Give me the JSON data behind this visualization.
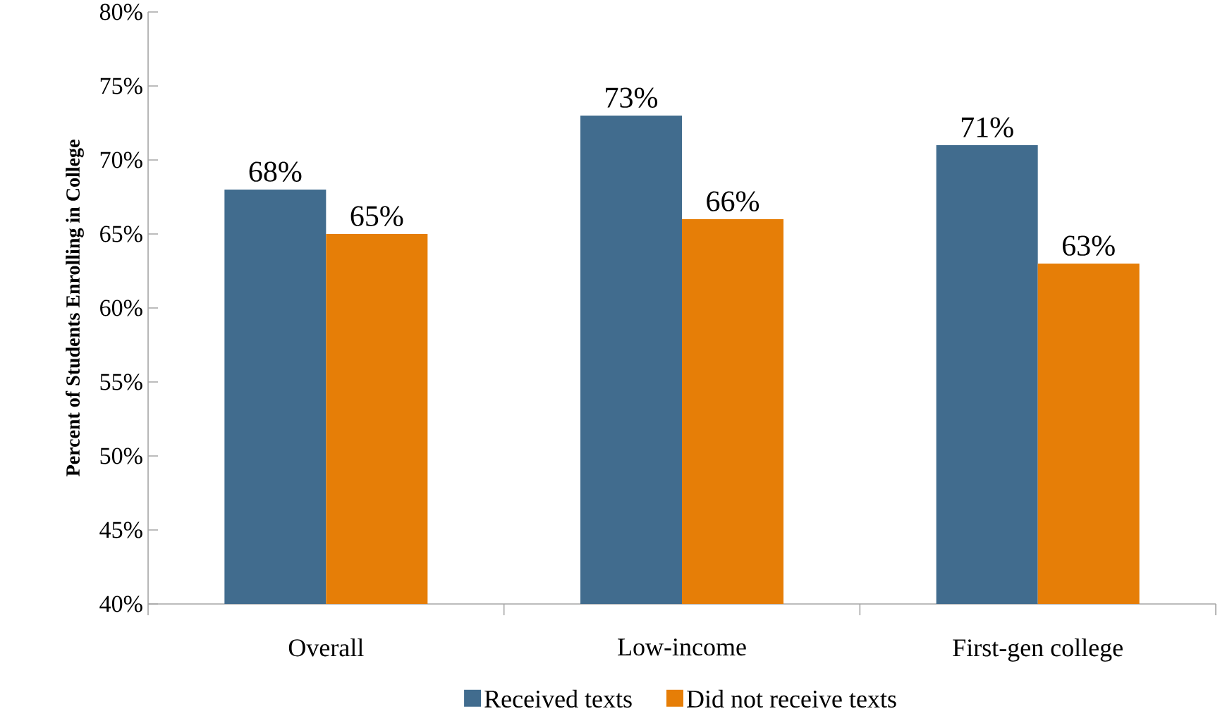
{
  "chart_data": {
    "type": "bar",
    "ylabel": "Percent of  Students Enrolling in College",
    "categories": [
      "Overall",
      "Low-income",
      "First-gen college"
    ],
    "series": [
      {
        "name": "Received texts",
        "color": "#416c8e",
        "values": [
          68,
          73,
          71
        ],
        "value_labels": [
          "68%",
          "73%",
          "71%"
        ]
      },
      {
        "name": "Did not receive texts",
        "color": "#e67e07",
        "values": [
          65,
          66,
          63
        ],
        "value_labels": [
          "65%",
          "66%",
          "63%"
        ]
      }
    ],
    "ylim": [
      40,
      80
    ],
    "yticks": [
      {
        "value": 40,
        "label": "40%"
      },
      {
        "value": 45,
        "label": "45%"
      },
      {
        "value": 50,
        "label": "50%"
      },
      {
        "value": 55,
        "label": "55%"
      },
      {
        "value": 60,
        "label": "60%"
      },
      {
        "value": 65,
        "label": "65%"
      },
      {
        "value": 70,
        "label": "70%"
      },
      {
        "value": 75,
        "label": "75%"
      },
      {
        "value": 80,
        "label": "80%"
      }
    ],
    "grid": false,
    "legend": "bottom"
  }
}
